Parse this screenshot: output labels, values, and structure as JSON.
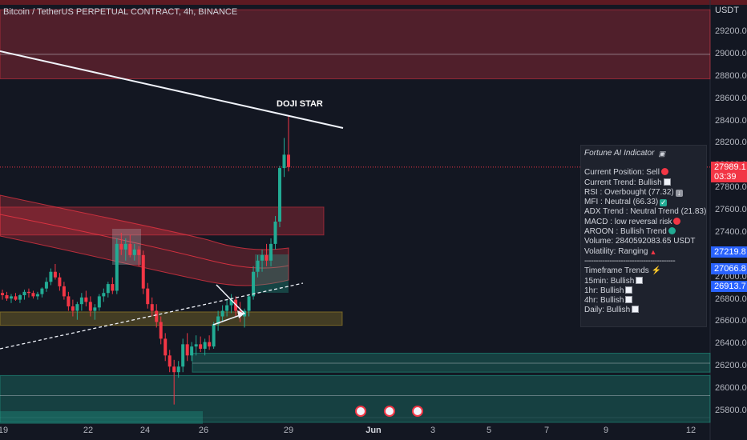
{
  "header": {
    "title": "Bitcoin / TetherUS PERPETUAL CONTRACT, 4h, BINANCE",
    "currency": "USDT"
  },
  "price_axis": {
    "ticks": [
      "29200.0",
      "29000.0",
      "28800.0",
      "28600.0",
      "28400.0",
      "28200.0",
      "28000.0",
      "27800.0",
      "27600.0",
      "27400.0",
      "27200.0",
      "27000.0",
      "26800.0",
      "26600.0",
      "26400.0",
      "26200.0",
      "26000.0",
      "25800.0"
    ]
  },
  "time_axis": {
    "ticks": [
      "19",
      "22",
      "24",
      "26",
      "29",
      "Jun",
      "3",
      "5",
      "7",
      "9",
      "12"
    ]
  },
  "price_badges": [
    {
      "text": "27989.1",
      "subtext": "03:39",
      "color": "#f23645"
    },
    {
      "text": "27219.8",
      "color": "#2962ff"
    },
    {
      "text": "27066.8",
      "color": "#2962ff"
    },
    {
      "text": "26913.7",
      "color": "#2962ff"
    }
  ],
  "annotation": "DOJI STAR",
  "indicator": {
    "title": "Fortune AI Indicator",
    "rows": [
      {
        "text": "Current Position: Sell",
        "icon": "red-circle"
      },
      {
        "text": "Current Trend: Bullish",
        "icon": "chart-up"
      },
      {
        "text": "RSI : Overbought (77.32)",
        "icon": "down-arrow"
      },
      {
        "text": "MFI : Neutral (66.33)",
        "icon": "check-mark"
      },
      {
        "text": "ADX Trend : Neutral Trend (21.83)",
        "icon": "red-circle"
      },
      {
        "text": "MACD : low reversal risk",
        "icon": "red-circle"
      },
      {
        "text": "AROON : Bullish Trend",
        "icon": "green-circle"
      },
      {
        "text": "Volume: 2840592083.65 USDT",
        "icon": ""
      },
      {
        "text": "Volatility: Ranging",
        "icon": "warning"
      }
    ],
    "separator": "----------------------------------------",
    "timeframe_title": "Timeframe Trends ⚡",
    "timeframes": [
      {
        "text": "15min: Bullish",
        "icon": "chart-up"
      },
      {
        "text": "1hr: Bullish",
        "icon": "chart-up"
      },
      {
        "text": "4hr: Bullish",
        "icon": "chart-up"
      },
      {
        "text": "Daily: Bullish",
        "icon": "chart-up"
      }
    ]
  },
  "chart_data": {
    "type": "candlestick",
    "title": "Bitcoin / TetherUS PERPETUAL CONTRACT, 4h, BINANCE",
    "ylim": [
      25700,
      29450
    ],
    "x_date_range": [
      "May 19",
      "Jun 12"
    ],
    "colors": {
      "up": "#22ab94",
      "down": "#f23645",
      "background": "#131722"
    },
    "candles": [
      {
        "o": 26860,
        "h": 26890,
        "l": 26800,
        "c": 26840
      },
      {
        "o": 26840,
        "h": 26870,
        "l": 26790,
        "c": 26810
      },
      {
        "o": 26810,
        "h": 26850,
        "l": 26770,
        "c": 26830
      },
      {
        "o": 26830,
        "h": 26860,
        "l": 26790,
        "c": 26800
      },
      {
        "o": 26800,
        "h": 26850,
        "l": 26770,
        "c": 26840
      },
      {
        "o": 26840,
        "h": 26890,
        "l": 26800,
        "c": 26870
      },
      {
        "o": 26870,
        "h": 26900,
        "l": 26820,
        "c": 26860
      },
      {
        "o": 26860,
        "h": 26880,
        "l": 26810,
        "c": 26830
      },
      {
        "o": 26830,
        "h": 26870,
        "l": 26800,
        "c": 26850
      },
      {
        "o": 26850,
        "h": 26910,
        "l": 26820,
        "c": 26900
      },
      {
        "o": 26900,
        "h": 27000,
        "l": 26870,
        "c": 26960
      },
      {
        "o": 26960,
        "h": 27080,
        "l": 26930,
        "c": 27050
      },
      {
        "o": 27050,
        "h": 27120,
        "l": 26980,
        "c": 27000
      },
      {
        "o": 27000,
        "h": 27040,
        "l": 26880,
        "c": 26920
      },
      {
        "o": 26920,
        "h": 26960,
        "l": 26800,
        "c": 26830
      },
      {
        "o": 26830,
        "h": 26870,
        "l": 26700,
        "c": 26740
      },
      {
        "o": 26740,
        "h": 26800,
        "l": 26650,
        "c": 26700
      },
      {
        "o": 26700,
        "h": 26780,
        "l": 26620,
        "c": 26760
      },
      {
        "o": 26760,
        "h": 26860,
        "l": 26700,
        "c": 26820
      },
      {
        "o": 26820,
        "h": 26880,
        "l": 26740,
        "c": 26780
      },
      {
        "o": 26780,
        "h": 26830,
        "l": 26650,
        "c": 26700
      },
      {
        "o": 26700,
        "h": 26760,
        "l": 26620,
        "c": 26730
      },
      {
        "o": 26730,
        "h": 26850,
        "l": 26700,
        "c": 26830
      },
      {
        "o": 26830,
        "h": 26900,
        "l": 26780,
        "c": 26860
      },
      {
        "o": 26860,
        "h": 26960,
        "l": 26820,
        "c": 26940
      },
      {
        "o": 26940,
        "h": 27000,
        "l": 26850,
        "c": 26880
      },
      {
        "o": 26880,
        "h": 27350,
        "l": 26850,
        "c": 27300
      },
      {
        "o": 27300,
        "h": 27400,
        "l": 27200,
        "c": 27250
      },
      {
        "o": 27250,
        "h": 27350,
        "l": 27150,
        "c": 27300
      },
      {
        "o": 27300,
        "h": 27380,
        "l": 27180,
        "c": 27200
      },
      {
        "o": 27200,
        "h": 27300,
        "l": 27150,
        "c": 27250
      },
      {
        "o": 27250,
        "h": 27280,
        "l": 27100,
        "c": 27200
      },
      {
        "o": 27200,
        "h": 27240,
        "l": 26850,
        "c": 26900
      },
      {
        "o": 26900,
        "h": 26950,
        "l": 26720,
        "c": 26760
      },
      {
        "o": 26760,
        "h": 26820,
        "l": 26650,
        "c": 26700
      },
      {
        "o": 26700,
        "h": 26760,
        "l": 26550,
        "c": 26600
      },
      {
        "o": 26600,
        "h": 26650,
        "l": 26400,
        "c": 26450
      },
      {
        "o": 26450,
        "h": 26500,
        "l": 26250,
        "c": 26300
      },
      {
        "o": 26300,
        "h": 26350,
        "l": 26150,
        "c": 26200
      },
      {
        "o": 26200,
        "h": 26260,
        "l": 25860,
        "c": 26150
      },
      {
        "o": 26150,
        "h": 26250,
        "l": 26100,
        "c": 26200
      },
      {
        "o": 26200,
        "h": 26450,
        "l": 26150,
        "c": 26400
      },
      {
        "o": 26400,
        "h": 26500,
        "l": 26250,
        "c": 26300
      },
      {
        "o": 26300,
        "h": 26420,
        "l": 26250,
        "c": 26380
      },
      {
        "o": 26380,
        "h": 26480,
        "l": 26300,
        "c": 26400
      },
      {
        "o": 26400,
        "h": 26470,
        "l": 26330,
        "c": 26360
      },
      {
        "o": 26360,
        "h": 26450,
        "l": 26300,
        "c": 26420
      },
      {
        "o": 26420,
        "h": 26480,
        "l": 26350,
        "c": 26380
      },
      {
        "o": 26380,
        "h": 26600,
        "l": 26360,
        "c": 26580
      },
      {
        "o": 26580,
        "h": 26700,
        "l": 26520,
        "c": 26650
      },
      {
        "o": 26650,
        "h": 26750,
        "l": 26600,
        "c": 26700
      },
      {
        "o": 26700,
        "h": 26800,
        "l": 26650,
        "c": 26750
      },
      {
        "o": 26750,
        "h": 26850,
        "l": 26680,
        "c": 26800
      },
      {
        "o": 26800,
        "h": 26830,
        "l": 26650,
        "c": 26700
      },
      {
        "o": 26700,
        "h": 26780,
        "l": 26600,
        "c": 26650
      },
      {
        "o": 26650,
        "h": 26720,
        "l": 26550,
        "c": 26700
      },
      {
        "o": 26700,
        "h": 26850,
        "l": 26650,
        "c": 26830
      },
      {
        "o": 26830,
        "h": 27100,
        "l": 26800,
        "c": 27050
      },
      {
        "o": 27050,
        "h": 27200,
        "l": 27000,
        "c": 27150
      },
      {
        "o": 27150,
        "h": 27250,
        "l": 27050,
        "c": 27200
      },
      {
        "o": 27200,
        "h": 27300,
        "l": 27100,
        "c": 27150
      },
      {
        "o": 27150,
        "h": 27350,
        "l": 27100,
        "c": 27300
      },
      {
        "o": 27300,
        "h": 27550,
        "l": 27250,
        "c": 27500
      },
      {
        "o": 27500,
        "h": 28000,
        "l": 27450,
        "c": 27980
      },
      {
        "o": 27980,
        "h": 28250,
        "l": 27900,
        "c": 28100
      },
      {
        "o": 28100,
        "h": 28450,
        "l": 27950,
        "c": 27989.1
      }
    ],
    "zones": [
      {
        "label": "supply",
        "from": 28780,
        "to": 29400,
        "color": "#f23645"
      },
      {
        "label": "resistance",
        "from": 27380,
        "to": 27630,
        "color": "#f23645"
      },
      {
        "label": "support",
        "from": 26570,
        "to": 26690,
        "color": "#c2a02c"
      },
      {
        "label": "demand",
        "from": 26150,
        "to": 26320,
        "color": "#22ab94"
      },
      {
        "label": "demand-low",
        "from": 25700,
        "to": 26120,
        "color": "#22ab94"
      }
    ],
    "horizontal_lines": [
      27989.1,
      27219.8,
      27066.8,
      26913.7
    ]
  }
}
